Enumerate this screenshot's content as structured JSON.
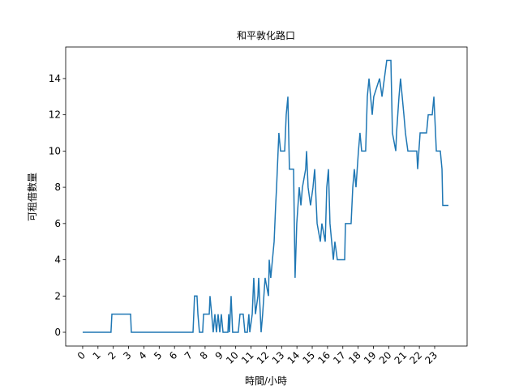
{
  "chart_data": {
    "type": "line",
    "title": "和平敦化路口",
    "x_label": "時間/小時",
    "y_label": "可租借數量",
    "x": [
      0,
      1.85,
      1.91,
      3.13,
      3.18,
      7.21,
      7.31,
      7.47,
      7.53,
      7.63,
      7.84,
      7.9,
      8.27,
      8.32,
      8.43,
      8.53,
      8.64,
      8.74,
      8.85,
      8.96,
      9.06,
      9.17,
      9.49,
      9.54,
      9.59,
      9.7,
      9.8,
      10.17,
      10.28,
      10.49,
      10.6,
      10.76,
      10.86,
      10.92,
      11.08,
      11.18,
      11.29,
      11.45,
      11.5,
      11.66,
      11.76,
      11.92,
      12.14,
      12.19,
      12.29,
      12.51,
      12.61,
      12.67,
      12.82,
      12.93,
      13.2,
      13.3,
      13.41,
      13.51,
      13.78,
      13.88,
      13.99,
      14.15,
      14.26,
      14.36,
      14.57,
      14.63,
      14.73,
      14.89,
      15.05,
      15.16,
      15.32,
      15.53,
      15.63,
      15.85,
      15.95,
      16.06,
      16.16,
      16.27,
      16.38,
      16.48,
      16.64,
      17.12,
      17.17,
      17.54,
      17.65,
      17.75,
      17.86,
      18.02,
      18.12,
      18.23,
      18.49,
      18.6,
      18.71,
      18.92,
      19.02,
      19.4,
      19.56,
      19.87,
      20.14,
      20.24,
      20.46,
      20.51,
      20.67,
      20.77,
      20.99,
      21.09,
      21.25,
      21.83,
      21.89,
      22.05,
      22.47,
      22.58,
      22.84,
      22.95,
      23.11,
      23.37,
      23.48,
      23.53,
      23.9
    ],
    "series": [
      {
        "color": "#1f77b4",
        "values": [
          0,
          0,
          1,
          1,
          0,
          0,
          2,
          2,
          1,
          0,
          0,
          1,
          1,
          2,
          1,
          0,
          1,
          0,
          1,
          0,
          1,
          0,
          0,
          1,
          0,
          2,
          0,
          0,
          1,
          1,
          0,
          0,
          1,
          0,
          1,
          3,
          1,
          2,
          3,
          0,
          1,
          3,
          2,
          4,
          3,
          5,
          7,
          8,
          11,
          10,
          10,
          12,
          13,
          9,
          9,
          3,
          6,
          8,
          7,
          8,
          9,
          10,
          8,
          7,
          8,
          9,
          6,
          5,
          6,
          5,
          8,
          9,
          6,
          5,
          4,
          5,
          4,
          4,
          6,
          6,
          8,
          9,
          8,
          10,
          11,
          10,
          10,
          13,
          14,
          12,
          13,
          14,
          13,
          15,
          15,
          11,
          10,
          11,
          13,
          14,
          12,
          11,
          10,
          10,
          9,
          11,
          11,
          12,
          12,
          13,
          10,
          10,
          9,
          7,
          7
        ]
      }
    ],
    "xlim": [
      -1.11,
      25.12
    ],
    "ylim": [
      -0.76,
      15.74
    ],
    "xticks": [
      0,
      1,
      2,
      3,
      4,
      5,
      6,
      7,
      8,
      9,
      10,
      11,
      12,
      13,
      14,
      15,
      16,
      17,
      18,
      19,
      20,
      21,
      22,
      23
    ],
    "yticks": [
      0,
      2,
      4,
      6,
      8,
      10,
      12,
      14
    ]
  }
}
